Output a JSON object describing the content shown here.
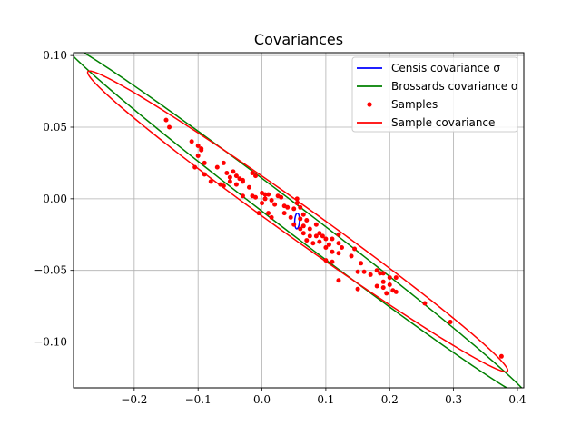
{
  "chart_data": {
    "type": "scatter",
    "title": "Covariances",
    "xlabel": "",
    "ylabel": "",
    "xlim": [
      -0.295,
      0.41
    ],
    "ylim": [
      -0.132,
      0.102
    ],
    "x_ticks": [
      -0.2,
      -0.1,
      0.0,
      0.1,
      0.2,
      0.3,
      0.4
    ],
    "x_tick_labels": [
      "−0.2",
      "−0.1",
      "0.0",
      "0.1",
      "0.2",
      "0.3",
      "0.4"
    ],
    "y_ticks": [
      -0.1,
      -0.05,
      0.0,
      0.05,
      0.1
    ],
    "y_tick_labels": [
      "−0.10",
      "−0.05",
      "0.00",
      "0.05",
      "0.10"
    ],
    "grid": true,
    "legend_position": "top-right",
    "legend": [
      {
        "label": "Censis covariance σ",
        "color": "#0000ff",
        "kind": "line"
      },
      {
        "label": "Brossards covariance σ",
        "color": "#008000",
        "kind": "line"
      },
      {
        "label": "Samples",
        "color": "#ff0000",
        "kind": "marker"
      },
      {
        "label": "Sample covariance",
        "color": "#ff0000",
        "kind": "line"
      }
    ],
    "ellipses": [
      {
        "name": "Censis covariance σ",
        "color": "#0000ff",
        "center": [
          0.055,
          -0.0155
        ],
        "semi_major": 0.0055,
        "semi_minor": 0.0037,
        "angle_deg": 80
      },
      {
        "name": "Brossards covariance σ",
        "color": "#008000",
        "center": [
          0.054,
          -0.0155
        ],
        "semi_major": 0.385,
        "semi_minor": 0.011,
        "angle_deg": -18.73
      },
      {
        "name": "Sample covariance",
        "color": "#ff0000",
        "center": [
          0.056,
          -0.0158
        ],
        "semi_major": 0.345,
        "semi_minor": 0.0135,
        "angle_deg": -17.58
      }
    ],
    "samples": {
      "color": "#ff0000",
      "points": [
        [
          -0.15,
          0.055
        ],
        [
          -0.145,
          0.05
        ],
        [
          -0.11,
          0.04
        ],
        [
          -0.1,
          0.037
        ],
        [
          -0.095,
          0.034
        ],
        [
          -0.095,
          0.035
        ],
        [
          -0.1,
          0.03
        ],
        [
          -0.09,
          0.025
        ],
        [
          -0.08,
          0.012
        ],
        [
          -0.09,
          0.017
        ],
        [
          -0.105,
          0.022
        ],
        [
          -0.07,
          0.022
        ],
        [
          -0.06,
          0.025
        ],
        [
          -0.055,
          0.018
        ],
        [
          -0.05,
          0.015
        ],
        [
          -0.045,
          0.019
        ],
        [
          -0.04,
          0.016
        ],
        [
          -0.035,
          0.014
        ],
        [
          -0.03,
          0.012
        ],
        [
          -0.04,
          0.01
        ],
        [
          -0.05,
          0.012
        ],
        [
          -0.06,
          0.009
        ],
        [
          -0.065,
          0.01
        ],
        [
          -0.015,
          0.018
        ],
        [
          -0.01,
          0.016
        ],
        [
          -0.02,
          0.008
        ],
        [
          -0.03,
          0.002
        ],
        [
          -0.015,
          0.002
        ],
        [
          -0.01,
          0.001
        ],
        [
          0.0,
          0.004
        ],
        [
          0.005,
          0.003
        ],
        [
          0.01,
          0.003
        ],
        [
          0.015,
          -0.001
        ],
        [
          0.005,
          0.0
        ],
        [
          0.0,
          -0.003
        ],
        [
          -0.005,
          -0.01
        ],
        [
          0.01,
          -0.01
        ],
        [
          0.015,
          -0.013
        ],
        [
          0.025,
          0.002
        ],
        [
          0.03,
          0.001
        ],
        [
          0.035,
          -0.005
        ],
        [
          0.04,
          -0.006
        ],
        [
          0.05,
          -0.007
        ],
        [
          0.055,
          -0.003
        ],
        [
          0.055,
          0.0
        ],
        [
          0.06,
          -0.006
        ],
        [
          0.065,
          -0.011
        ],
        [
          0.065,
          -0.019
        ],
        [
          0.07,
          -0.015
        ],
        [
          0.05,
          -0.018
        ],
        [
          0.06,
          -0.021
        ],
        [
          0.065,
          -0.024
        ],
        [
          0.07,
          -0.029
        ],
        [
          0.075,
          -0.026
        ],
        [
          0.08,
          -0.031
        ],
        [
          0.085,
          -0.018
        ],
        [
          0.09,
          -0.024
        ],
        [
          0.09,
          -0.03
        ],
        [
          0.095,
          -0.026
        ],
        [
          0.1,
          -0.028
        ],
        [
          0.1,
          -0.034
        ],
        [
          0.105,
          -0.032
        ],
        [
          0.11,
          -0.028
        ],
        [
          0.11,
          -0.037
        ],
        [
          0.12,
          -0.025
        ],
        [
          0.12,
          -0.031
        ],
        [
          0.12,
          -0.038
        ],
        [
          0.125,
          -0.034
        ],
        [
          0.1,
          -0.043
        ],
        [
          0.11,
          -0.044
        ],
        [
          0.12,
          -0.057
        ],
        [
          0.145,
          -0.035
        ],
        [
          0.15,
          -0.051
        ],
        [
          0.155,
          -0.045
        ],
        [
          0.16,
          -0.051
        ],
        [
          0.17,
          -0.053
        ],
        [
          0.18,
          -0.05
        ],
        [
          0.185,
          -0.052
        ],
        [
          0.19,
          -0.058
        ],
        [
          0.19,
          -0.052
        ],
        [
          0.2,
          -0.055
        ],
        [
          0.2,
          -0.06
        ],
        [
          0.205,
          -0.064
        ],
        [
          0.21,
          -0.055
        ],
        [
          0.18,
          -0.061
        ],
        [
          0.19,
          -0.062
        ],
        [
          0.195,
          -0.066
        ],
        [
          0.21,
          -0.065
        ],
        [
          0.15,
          -0.063
        ],
        [
          0.255,
          -0.073
        ],
        [
          0.295,
          -0.086
        ],
        [
          0.375,
          -0.11
        ],
        [
          0.06,
          -0.014
        ],
        [
          0.035,
          -0.01
        ],
        [
          0.075,
          -0.021
        ],
        [
          0.045,
          -0.013
        ],
        [
          0.085,
          -0.026
        ],
        [
          0.02,
          -0.004
        ],
        [
          -0.03,
          0.013
        ],
        [
          0.14,
          -0.04
        ]
      ]
    }
  }
}
